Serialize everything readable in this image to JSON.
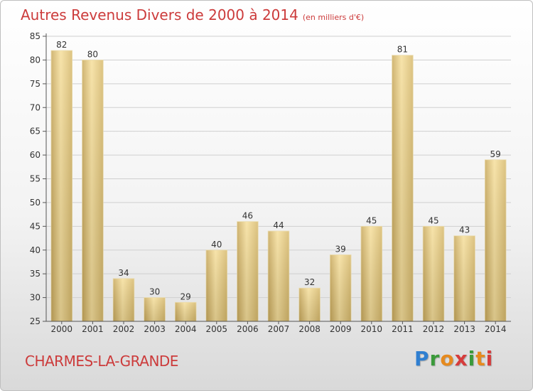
{
  "header": {
    "title": "Autres Revenus Divers de 2000 à 2014",
    "unit": "(en milliers d'€)"
  },
  "footer": {
    "commune": "CHARMES-LA-GRANDE",
    "logo_text": "Proxiti"
  },
  "colors": {
    "title": "#cc3b3b",
    "bar_light": "#f6df9c",
    "bar_dark": "#c9a95c",
    "grid": "#cfcfcf"
  },
  "chart_data": {
    "type": "bar",
    "title": "Autres Revenus Divers de 2000 à 2014",
    "subtitle": "(en milliers d'€)",
    "xlabel": "",
    "ylabel": "",
    "categories": [
      "2000",
      "2001",
      "2002",
      "2003",
      "2004",
      "2005",
      "2006",
      "2007",
      "2008",
      "2009",
      "2010",
      "2011",
      "2012",
      "2013",
      "2014"
    ],
    "values": [
      82,
      80,
      34,
      30,
      29,
      40,
      46,
      44,
      32,
      39,
      45,
      81,
      45,
      43,
      59
    ],
    "ylim": [
      25,
      85
    ],
    "yticks": [
      25,
      30,
      35,
      40,
      45,
      50,
      55,
      60,
      65,
      70,
      75,
      80,
      85
    ],
    "grid": true,
    "legend": "none"
  }
}
